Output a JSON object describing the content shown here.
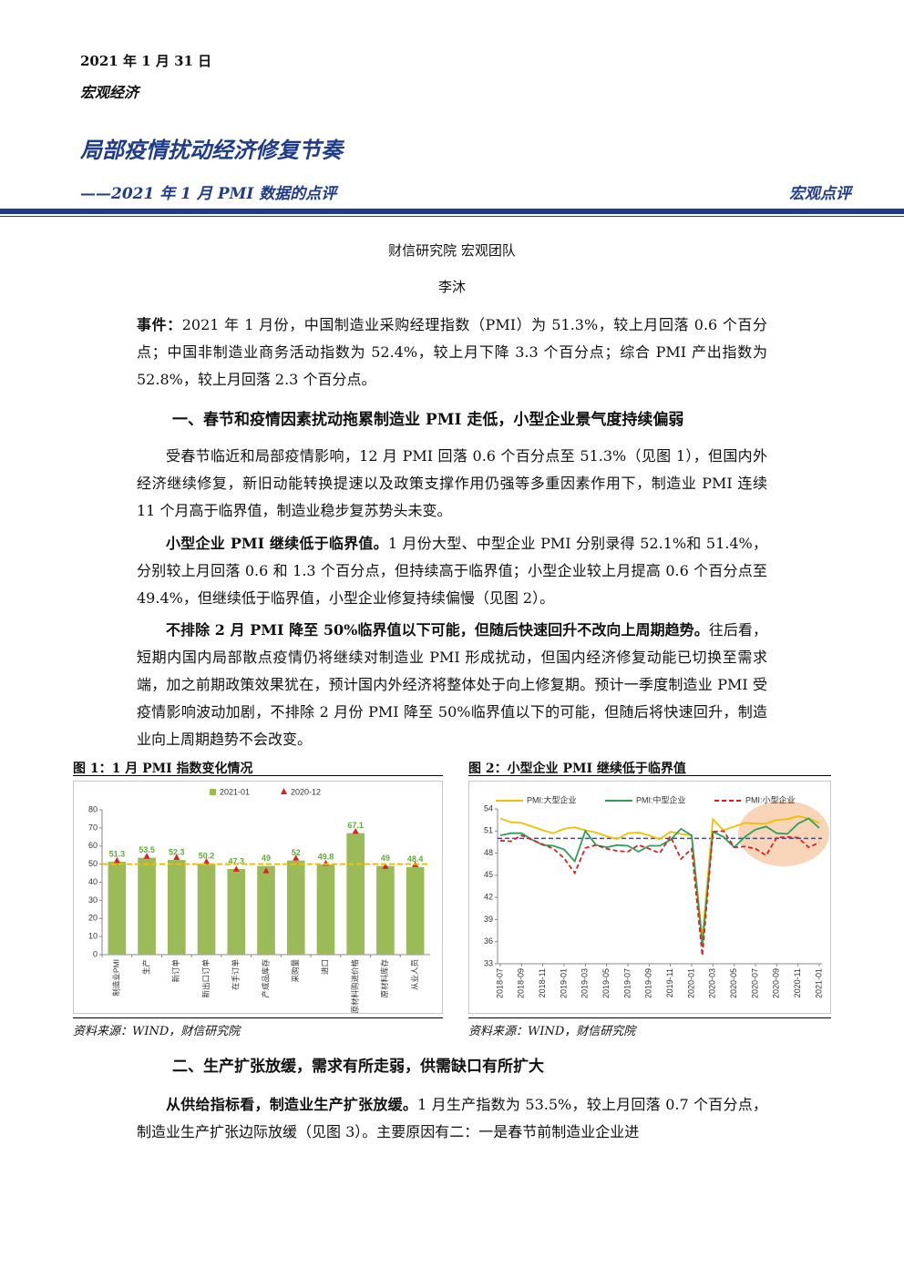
{
  "header": {
    "date": "2021 年 1 月 31 日",
    "category": "宏观经济",
    "title": "局部疫情扰动经济修复节奏",
    "subtitle": "——2021 年 1 月 PMI 数据的点评",
    "tag": "宏观点评"
  },
  "authors": [
    "财信研究院 宏观团队",
    "李沐"
  ],
  "blocks": [
    {
      "lead": "事件：",
      "text": "2021 年 1 月份，中国制造业采购经理指数（PMI）为 51.3%，较上月回落 0.6 个百分点；中国非制造业商务活动指数为 52.4%，较上月下降 3.3 个百分点；综合 PMI 产出指数为 52.8%，较上月回落 2.3 个百分点。"
    },
    {
      "heading": "一、春节和疫情因素扰动拖累制造业 PMI 走低，小型企业景气度持续偏弱"
    },
    {
      "text": "受春节临近和局部疫情影响，12 月 PMI 回落 0.6 个百分点至 51.3%（见图 1），但国内外经济继续修复，新旧动能转换提速以及政策支撑作用仍强等多重因素作用下，制造业 PMI 连续 11 个月高于临界值，制造业稳步复苏势头未变。"
    },
    {
      "lead": "小型企业 PMI 继续低于临界值。",
      "text": "1 月份大型、中型企业 PMI 分别录得 52.1%和 51.4%，分别较上月回落 0.6 和 1.3 个百分点，但持续高于临界值；小型企业较上月提高 0.6 个百分点至 49.4%，但继续低于临界值，小型企业修复持续偏慢（见图 2）。"
    },
    {
      "lead": "不排除 2 月 PMI 降至 50%临界值以下可能，但随后快速回升不改向上周期趋势。",
      "text": "往后看，短期内国内局部散点疫情仍将继续对制造业 PMI 形成扰动，但国内经济修复动能已切换至需求端，加之前期政策效果犹在，预计国内外经济将整体处于向上修复期。预计一季度制造业 PMI 受疫情影响波动加剧，不排除 2 月份 PMI 降至 50%临界值以下的可能，但随后将快速回升，制造业向上周期趋势不会改变。"
    },
    {
      "heading": "二、生产扩张放缓，需求有所走弱，供需缺口有所扩大"
    },
    {
      "lead": "从供给指标看，制造业生产扩张放缓。",
      "text": "1 月生产指数为 53.5%，较上月回落 0.7 个百分点，制造业生产扩张边际放缓（见图 3）。主要原因有二：一是春节前制造业企业进"
    }
  ],
  "chart_data": [
    {
      "type": "bar",
      "title": "图 1：1 月 PMI 指数变化情况",
      "source": "资料来源：WIND，财信研究院",
      "categories": [
        "制造业PMI",
        "生产",
        "新订单",
        "新出口订单",
        "在手订单",
        "产成品库存",
        "采购量",
        "进口",
        "原材料购进价格",
        "原材料库存",
        "从业人员"
      ],
      "series": [
        {
          "name": "2021-01",
          "color": "#9bbb59",
          "style": "bar",
          "label_color": "#5fae3a",
          "values": [
            51.3,
            53.5,
            52.3,
            50.2,
            47.3,
            49,
            52,
            49.8,
            67.1,
            49,
            48.4
          ]
        },
        {
          "name": "2020-12",
          "color": "#e02020",
          "style": "triangle",
          "values": [
            51.9,
            54.2,
            53.6,
            51.3,
            47.1,
            46.2,
            53.2,
            50.4,
            68.0,
            48.6,
            49.6
          ]
        }
      ],
      "reference_line": 50,
      "reference_color": "#f0c000",
      "ylim": [
        0,
        80
      ],
      "yticks": [
        0,
        10,
        20,
        30,
        40,
        50,
        60,
        70,
        80
      ]
    },
    {
      "type": "line",
      "title": "图 2：小型企业 PMI 继续低于临界值",
      "source": "资料来源：WIND，财信研究院",
      "categories": [
        "2018-07",
        null,
        "2018-09",
        null,
        "2018-11",
        null,
        "2019-01",
        null,
        "2019-03",
        null,
        "2019-05",
        null,
        "2019-07",
        null,
        "2019-09",
        null,
        "2019-11",
        null,
        "2020-01",
        null,
        "2020-03",
        null,
        "2020-05",
        null,
        "2020-07",
        null,
        "2020-09",
        null,
        "2020-11",
        null,
        "2021-01"
      ],
      "series": [
        {
          "name": "PMI:大型企业",
          "color": "#f0c000",
          "dash": false,
          "values": [
            52.7,
            52.2,
            52.1,
            51.6,
            51.1,
            50.7,
            51.3,
            51.5,
            51.1,
            50.8,
            50.3,
            49.9,
            50.7,
            50.8,
            50.4,
            49.9,
            50.9,
            50.6,
            50.4,
            36.5,
            52.6,
            51.1,
            51.6,
            52.1,
            52.0,
            52.0,
            52.5,
            52.6,
            53.0,
            52.7,
            52.1
          ]
        },
        {
          "name": "PMI:中型企业",
          "color": "#2ca05a",
          "dash": false,
          "values": [
            50.4,
            50.7,
            50.7,
            49.8,
            49.1,
            49.0,
            48.5,
            46.9,
            51.0,
            49.1,
            48.8,
            49.1,
            49.0,
            48.2,
            49.0,
            49.0,
            49.8,
            51.3,
            50.4,
            35.5,
            50.9,
            50.2,
            48.8,
            50.2,
            51.2,
            51.6,
            50.7,
            50.6,
            52.0,
            52.7,
            51.4
          ]
        },
        {
          "name": "PMI:小型企业",
          "color": "#e02020",
          "dash": true,
          "values": [
            49.7,
            49.6,
            50.4,
            49.8,
            49.2,
            48.6,
            47.3,
            45.3,
            48.7,
            49.1,
            48.6,
            48.3,
            48.2,
            49.1,
            48.6,
            48.0,
            50.3,
            47.2,
            48.6,
            34.1,
            50.9,
            51.0,
            48.8,
            48.9,
            48.6,
            47.7,
            50.1,
            50.2,
            50.1,
            48.8,
            49.4
          ]
        }
      ],
      "reference_line": 50,
      "reference_color": "#4a4a80",
      "ylim": [
        33,
        54
      ],
      "yticks": [
        33,
        36,
        39,
        42,
        45,
        48,
        51,
        54
      ]
    }
  ]
}
